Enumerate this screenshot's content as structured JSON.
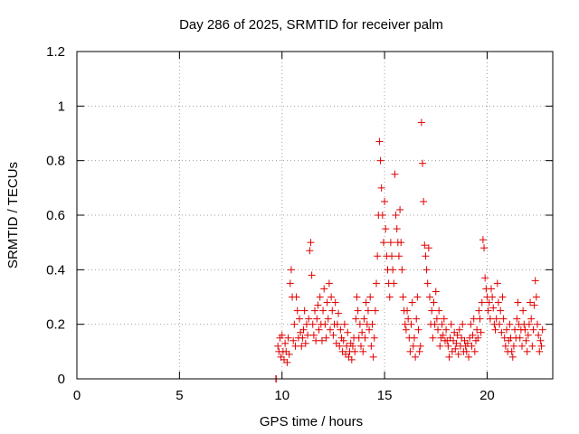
{
  "chart_data": {
    "type": "scatter",
    "title": "Day 286 of 2025, SRMTID for receiver palm",
    "xlabel": "GPS time / hours",
    "ylabel": "SRMTID / TECUs",
    "xlim": [
      0,
      23.2
    ],
    "ylim": [
      0,
      1.2
    ],
    "xticks": [
      0,
      5,
      10,
      15,
      20
    ],
    "yticks": [
      0,
      0.2,
      0.4,
      0.6,
      0.8,
      1,
      1.2
    ],
    "ytick_labels": [
      "0",
      "0.2",
      "0.4",
      "0.6",
      "0.8",
      "1",
      "1.2"
    ],
    "grid": true,
    "marker": "+",
    "series": [
      {
        "name": "SRMTID",
        "color": "#e00000",
        "x": [
          9.7,
          9.72,
          9.8,
          9.85,
          9.9,
          9.95,
          10.0,
          10.05,
          10.1,
          10.15,
          10.2,
          10.25,
          10.3,
          10.35,
          10.4,
          10.45,
          10.5,
          10.55,
          10.6,
          10.65,
          10.7,
          10.75,
          10.8,
          10.85,
          10.9,
          10.95,
          11.0,
          11.05,
          11.1,
          11.15,
          11.2,
          11.25,
          11.3,
          11.35,
          11.4,
          11.45,
          11.5,
          11.55,
          11.6,
          11.65,
          11.7,
          11.75,
          11.8,
          11.85,
          11.9,
          11.95,
          12.0,
          12.05,
          12.1,
          12.15,
          12.2,
          12.25,
          12.3,
          12.35,
          12.4,
          12.45,
          12.5,
          12.55,
          12.6,
          12.65,
          12.7,
          12.75,
          12.8,
          12.85,
          12.9,
          12.95,
          13.0,
          13.05,
          13.1,
          13.15,
          13.2,
          13.25,
          13.3,
          13.35,
          13.4,
          13.45,
          13.5,
          13.55,
          13.6,
          13.65,
          13.7,
          13.75,
          13.8,
          13.85,
          13.9,
          13.95,
          14.0,
          14.05,
          14.1,
          14.15,
          14.2,
          14.25,
          14.3,
          14.35,
          14.4,
          14.45,
          14.5,
          14.55,
          14.6,
          14.65,
          14.7,
          14.75,
          14.8,
          14.85,
          14.9,
          14.95,
          15.0,
          15.05,
          15.1,
          15.15,
          15.2,
          15.25,
          15.3,
          15.35,
          15.4,
          15.45,
          15.5,
          15.55,
          15.6,
          15.65,
          15.7,
          15.75,
          15.8,
          15.85,
          15.9,
          15.95,
          16.0,
          16.05,
          16.1,
          16.15,
          16.2,
          16.25,
          16.3,
          16.35,
          16.4,
          16.45,
          16.5,
          16.55,
          16.6,
          16.65,
          16.7,
          16.75,
          16.8,
          16.85,
          16.9,
          16.95,
          17.0,
          17.05,
          17.1,
          17.15,
          17.2,
          17.25,
          17.3,
          17.35,
          17.4,
          17.45,
          17.5,
          17.55,
          17.6,
          17.65,
          17.7,
          17.75,
          17.8,
          17.85,
          17.9,
          17.95,
          18.0,
          18.05,
          18.1,
          18.15,
          18.2,
          18.25,
          18.3,
          18.35,
          18.4,
          18.45,
          18.5,
          18.55,
          18.6,
          18.65,
          18.7,
          18.75,
          18.8,
          18.85,
          18.9,
          18.95,
          19.0,
          19.05,
          19.1,
          19.15,
          19.2,
          19.25,
          19.3,
          19.35,
          19.4,
          19.45,
          19.5,
          19.55,
          19.6,
          19.65,
          19.7,
          19.75,
          19.8,
          19.85,
          19.9,
          19.95,
          20.0,
          20.05,
          20.1,
          20.15,
          20.2,
          20.25,
          20.3,
          20.35,
          20.4,
          20.45,
          20.5,
          20.55,
          20.6,
          20.65,
          20.7,
          20.75,
          20.8,
          20.85,
          20.9,
          20.95,
          21.0,
          21.05,
          21.1,
          21.15,
          21.2,
          21.25,
          21.3,
          21.35,
          21.4,
          21.45,
          21.5,
          21.55,
          21.6,
          21.65,
          21.7,
          21.75,
          21.8,
          21.85,
          21.9,
          21.95,
          22.0,
          22.05,
          22.1,
          22.15,
          22.2,
          22.25,
          22.3,
          22.35,
          22.4,
          22.45,
          22.5,
          22.55,
          22.6,
          22.65,
          22.7
        ],
        "y": [
          0.0,
          0.0,
          0.12,
          0.1,
          0.15,
          0.08,
          0.16,
          0.1,
          0.07,
          0.13,
          0.1,
          0.06,
          0.15,
          0.09,
          0.35,
          0.4,
          0.3,
          0.14,
          0.2,
          0.12,
          0.3,
          0.25,
          0.15,
          0.22,
          0.17,
          0.12,
          0.15,
          0.18,
          0.25,
          0.13,
          0.2,
          0.16,
          0.22,
          0.47,
          0.5,
          0.38,
          0.2,
          0.16,
          0.25,
          0.14,
          0.22,
          0.27,
          0.18,
          0.3,
          0.2,
          0.14,
          0.25,
          0.33,
          0.2,
          0.15,
          0.28,
          0.22,
          0.35,
          0.18,
          0.3,
          0.25,
          0.16,
          0.2,
          0.28,
          0.13,
          0.2,
          0.24,
          0.12,
          0.18,
          0.15,
          0.1,
          0.14,
          0.2,
          0.09,
          0.12,
          0.17,
          0.08,
          0.1,
          0.13,
          0.07,
          0.12,
          0.15,
          0.1,
          0.22,
          0.3,
          0.25,
          0.15,
          0.2,
          0.12,
          0.17,
          0.1,
          0.22,
          0.15,
          0.28,
          0.2,
          0.25,
          0.18,
          0.3,
          0.12,
          0.2,
          0.08,
          0.15,
          0.25,
          0.35,
          0.45,
          0.6,
          0.87,
          0.8,
          0.7,
          0.6,
          0.5,
          0.65,
          0.55,
          0.45,
          0.4,
          0.35,
          0.3,
          0.5,
          0.45,
          0.4,
          0.35,
          0.75,
          0.6,
          0.55,
          0.5,
          0.45,
          0.62,
          0.5,
          0.4,
          0.3,
          0.25,
          0.2,
          0.18,
          0.25,
          0.22,
          0.15,
          0.1,
          0.2,
          0.28,
          0.12,
          0.15,
          0.08,
          0.22,
          0.3,
          0.18,
          0.1,
          0.12,
          0.94,
          0.79,
          0.65,
          0.49,
          0.45,
          0.4,
          0.35,
          0.48,
          0.3,
          0.2,
          0.25,
          0.15,
          0.28,
          0.2,
          0.32,
          0.22,
          0.18,
          0.25,
          0.12,
          0.15,
          0.2,
          0.16,
          0.22,
          0.14,
          0.18,
          0.14,
          0.12,
          0.08,
          0.15,
          0.2,
          0.1,
          0.14,
          0.17,
          0.11,
          0.13,
          0.16,
          0.09,
          0.18,
          0.12,
          0.15,
          0.2,
          0.1,
          0.14,
          0.12,
          0.1,
          0.13,
          0.08,
          0.15,
          0.2,
          0.12,
          0.16,
          0.22,
          0.1,
          0.14,
          0.18,
          0.15,
          0.25,
          0.22,
          0.17,
          0.28,
          0.51,
          0.48,
          0.37,
          0.33,
          0.3,
          0.25,
          0.28,
          0.22,
          0.33,
          0.3,
          0.26,
          0.2,
          0.18,
          0.22,
          0.35,
          0.28,
          0.2,
          0.25,
          0.17,
          0.3,
          0.22,
          0.15,
          0.12,
          0.18,
          0.1,
          0.14,
          0.2,
          0.15,
          0.1,
          0.08,
          0.12,
          0.18,
          0.15,
          0.22,
          0.28,
          0.2,
          0.15,
          0.18,
          0.12,
          0.25,
          0.2,
          0.18,
          0.14,
          0.1,
          0.16,
          0.2,
          0.28,
          0.22,
          0.12,
          0.18,
          0.27,
          0.36,
          0.3,
          0.2,
          0.16,
          0.1,
          0.14,
          0.12,
          0.18
        ]
      }
    ]
  }
}
